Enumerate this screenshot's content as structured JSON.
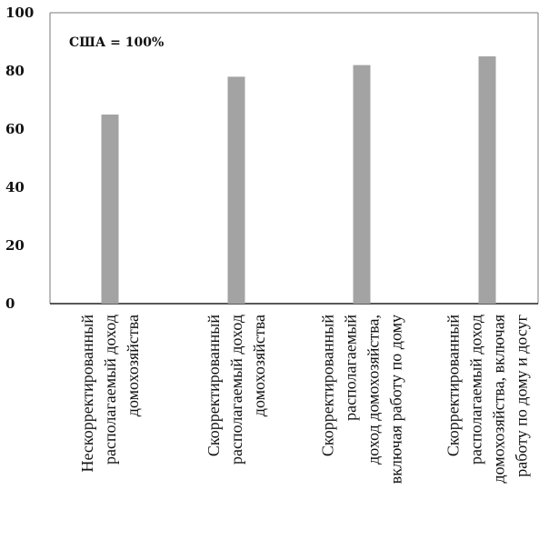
{
  "chart_data": {
    "type": "bar",
    "note": "США = 100%",
    "categories": [
      [
        "Нескорректированный",
        "располагаемый доход",
        "домохозяйства"
      ],
      [
        "Скорректированный",
        "располагаемый доход",
        "домохозяйства"
      ],
      [
        "Скорректированный",
        "располагаемый",
        "доход домохозяйства,",
        "включая работу по дому"
      ],
      [
        "Скорректированный",
        "располагаемый доход",
        "домохозяйства, включая",
        "работу по дому и досуг"
      ]
    ],
    "values": [
      65,
      78,
      82,
      85
    ],
    "ylim": [
      0,
      100
    ],
    "yticks": [
      "0",
      "20",
      "40",
      "60",
      "80",
      "100"
    ],
    "bar_color": "#a3a3a3",
    "axis_color": "#7a7a7a",
    "grid": false
  }
}
